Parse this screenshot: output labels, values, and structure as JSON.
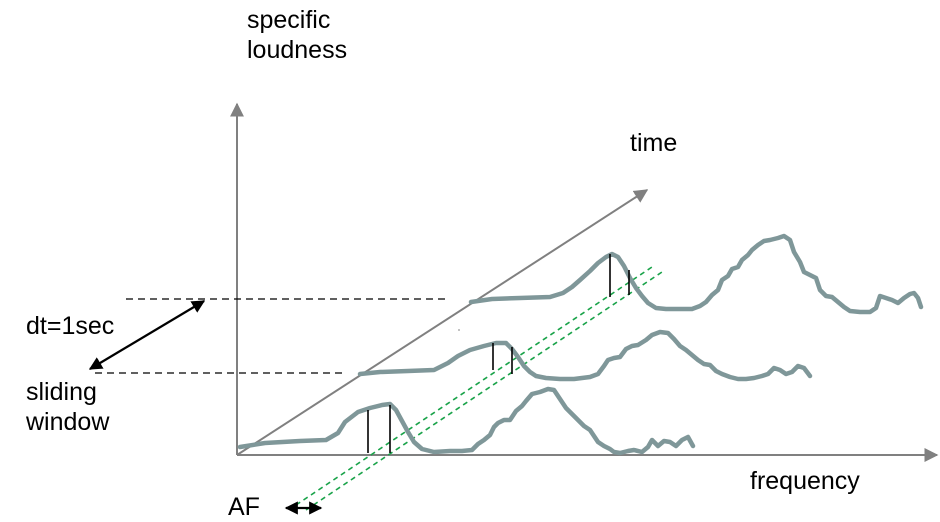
{
  "labels": {
    "y_axis": [
      "specific",
      "loudness"
    ],
    "time_axis": "time",
    "x_axis": "frequency",
    "dt": "dt=1sec",
    "sliding_window": [
      "sliding",
      "window"
    ],
    "af": "AF"
  },
  "colors": {
    "axis": "#808080",
    "spectrum_curve": "#7f9799",
    "band_marker": "#000000",
    "window_guide": "#000000",
    "af_lines": "#1aa34a",
    "text": "#000000"
  },
  "spectra": [
    {
      "time_step": 0,
      "band_markers": 2
    },
    {
      "time_step": 1,
      "band_markers": 2
    },
    {
      "time_step": 2,
      "band_markers": 2
    }
  ]
}
